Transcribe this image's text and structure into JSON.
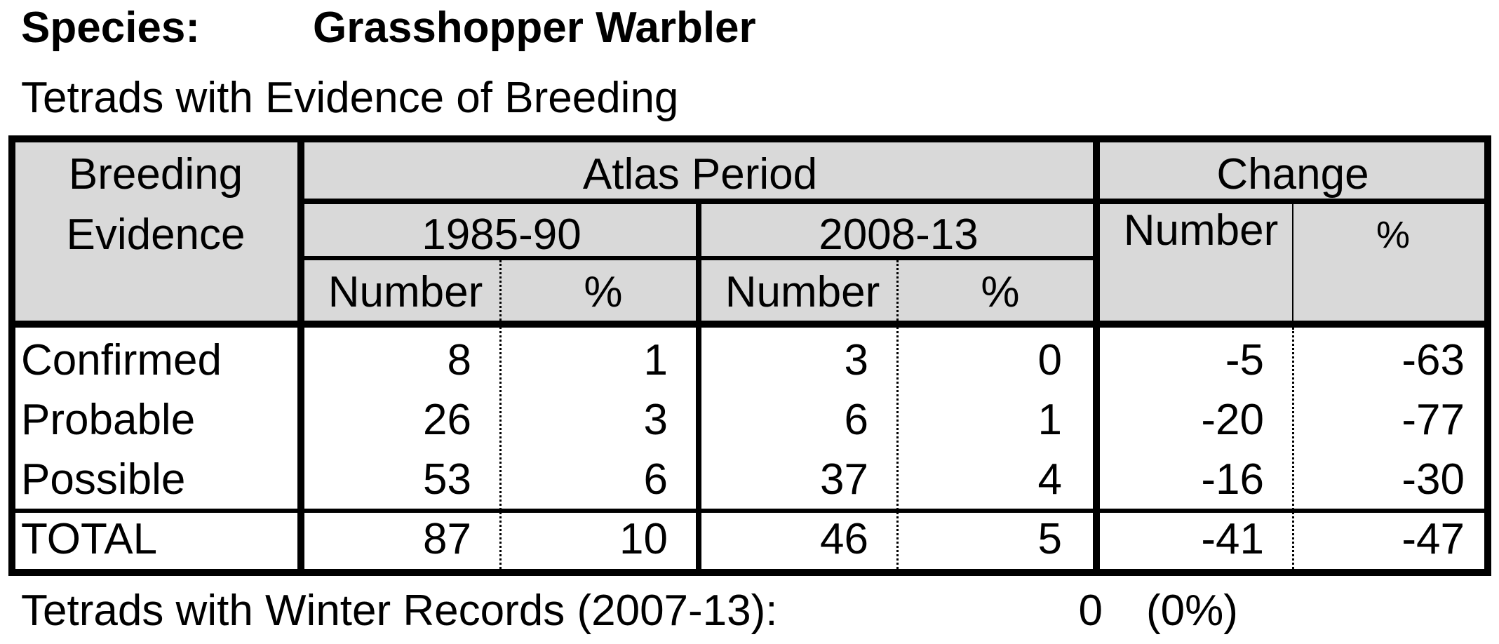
{
  "species": {
    "label": "Species:",
    "name": "Grasshopper Warbler"
  },
  "subtitle": "Tetrads with Evidence of Breeding",
  "table": {
    "header": {
      "breeding_line1": "Breeding",
      "breeding_line2": "Evidence",
      "atlas_period": "Atlas Period",
      "change": "Change",
      "period1": "1985-90",
      "period2": "2008-13",
      "number": "Number",
      "percent": "%"
    },
    "rows": [
      {
        "label": "Confirmed",
        "n1": "8",
        "p1": "1",
        "n2": "3",
        "p2": "0",
        "cn": "-5",
        "cp": "-63"
      },
      {
        "label": "Probable",
        "n1": "26",
        "p1": "3",
        "n2": "6",
        "p2": "1",
        "cn": "-20",
        "cp": "-77"
      },
      {
        "label": "Possible",
        "n1": "53",
        "p1": "6",
        "n2": "37",
        "p2": "4",
        "cn": "-16",
        "cp": "-30"
      }
    ],
    "total": {
      "label": "TOTAL",
      "n1": "87",
      "p1": "10",
      "n2": "46",
      "p2": "5",
      "cn": "-41",
      "cp": "-47"
    }
  },
  "footer": {
    "text": "Tetrads with Winter Records (2007-13):",
    "value": "0",
    "percent": "(0%)"
  }
}
